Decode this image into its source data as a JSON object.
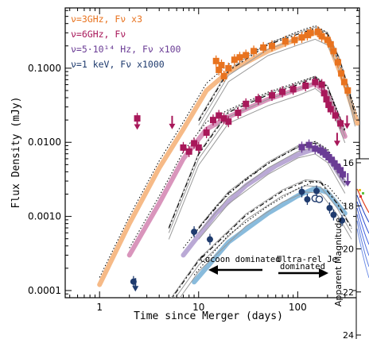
{
  "chart_data": {
    "type": "scatter",
    "xlabel": "Time since Merger (days)",
    "ylabel": "Flux Density (mJy)",
    "x_scale": "log",
    "y_scale": "log",
    "xlim": [
      0.45,
      420
    ],
    "ylim": [
      8e-05,
      0.65
    ],
    "x_ticks": [
      {
        "value": 1,
        "label": "1"
      },
      {
        "value": 10,
        "label": "10"
      },
      {
        "value": 100,
        "label": "100"
      }
    ],
    "y_ticks": [
      {
        "value": 0.0001,
        "label": "0.0001"
      },
      {
        "value": 0.001,
        "label": "0.0010"
      },
      {
        "value": 0.01,
        "label": "0.0100"
      },
      {
        "value": 0.1,
        "label": "0.1000"
      }
    ],
    "legend_position": "top-left",
    "series": [
      {
        "name": "ν=3GHz, Fν x3",
        "color": "#e8731f",
        "band_color": "#f5b27a",
        "points": [
          [
            15,
            0.125
          ],
          [
            16,
            0.095
          ],
          [
            17,
            0.11
          ],
          [
            18,
            0.078
          ],
          [
            20,
            0.1
          ],
          [
            23,
            0.13
          ],
          [
            26,
            0.14
          ],
          [
            30,
            0.15
          ],
          [
            36,
            0.17
          ],
          [
            45,
            0.19
          ],
          [
            55,
            0.2
          ],
          [
            75,
            0.23
          ],
          [
            93,
            0.24
          ],
          [
            110,
            0.26
          ],
          [
            125,
            0.28
          ],
          [
            135,
            0.3
          ],
          [
            160,
            0.31
          ],
          [
            175,
            0.27
          ],
          [
            200,
            0.24
          ],
          [
            215,
            0.21
          ],
          [
            230,
            0.17
          ],
          [
            255,
            0.12
          ],
          [
            275,
            0.085
          ],
          [
            295,
            0.065
          ],
          [
            320,
            0.05
          ]
        ],
        "model": [
          [
            10,
            0.017
          ],
          [
            20,
            0.08
          ],
          [
            50,
            0.18
          ],
          [
            100,
            0.25
          ],
          [
            150,
            0.3
          ],
          [
            200,
            0.25
          ],
          [
            260,
            0.12
          ],
          [
            320,
            0.05
          ],
          [
            380,
            0.02
          ]
        ],
        "band": [
          [
            1,
            0.00012
          ],
          [
            2,
            0.0008
          ],
          [
            4,
            0.0045
          ],
          [
            7,
            0.015
          ],
          [
            12,
            0.05
          ],
          [
            20,
            0.09
          ],
          [
            50,
            0.17
          ],
          [
            100,
            0.25
          ],
          [
            150,
            0.3
          ],
          [
            200,
            0.24
          ],
          [
            300,
            0.06
          ],
          [
            400,
            0.018
          ]
        ]
      },
      {
        "name": "ν=6GHz, Fν",
        "color": "#a8185a",
        "band_color": "#d58ab5",
        "points": [
          [
            2.4,
            0.021
          ],
          [
            7,
            0.0085
          ],
          [
            8,
            0.0075
          ],
          [
            9,
            0.0097
          ],
          [
            10,
            0.0085
          ],
          [
            12,
            0.0135
          ],
          [
            14,
            0.02
          ],
          [
            16,
            0.023
          ],
          [
            18,
            0.021
          ],
          [
            20,
            0.019
          ],
          [
            25,
            0.025
          ],
          [
            30,
            0.033
          ],
          [
            40,
            0.038
          ],
          [
            55,
            0.043
          ],
          [
            70,
            0.048
          ],
          [
            90,
            0.052
          ],
          [
            120,
            0.058
          ],
          [
            150,
            0.065
          ],
          [
            175,
            0.06
          ],
          [
            185,
            0.046
          ],
          [
            195,
            0.038
          ],
          [
            205,
            0.032
          ],
          [
            215,
            0.028
          ],
          [
            240,
            0.023
          ],
          [
            270,
            0.018
          ]
        ],
        "model": [
          [
            5,
            0.0006
          ],
          [
            10,
            0.006
          ],
          [
            20,
            0.022
          ],
          [
            50,
            0.038
          ],
          [
            100,
            0.052
          ],
          [
            150,
            0.065
          ],
          [
            200,
            0.048
          ],
          [
            300,
            0.012
          ]
        ],
        "band": [
          [
            2,
            0.0003
          ],
          [
            4,
            0.0015
          ],
          [
            7,
            0.006
          ],
          [
            12,
            0.015
          ],
          [
            20,
            0.022
          ],
          [
            50,
            0.038
          ],
          [
            100,
            0.052
          ],
          [
            150,
            0.062
          ],
          [
            200,
            0.045
          ],
          [
            300,
            0.012
          ]
        ]
      },
      {
        "name": "ν=5·10¹⁴ Hz, Fν x100",
        "color": "#6a3c95",
        "band_color": "#b3a0d0",
        "points": [
          [
            110,
            0.0086
          ],
          [
            130,
            0.0092
          ],
          [
            150,
            0.0082
          ],
          [
            170,
            0.0078
          ],
          [
            180,
            0.0074
          ],
          [
            195,
            0.0068
          ],
          [
            205,
            0.0063
          ],
          [
            220,
            0.0058
          ],
          [
            235,
            0.0052
          ],
          [
            250,
            0.0047
          ],
          [
            270,
            0.0042
          ],
          [
            285,
            0.0037
          ]
        ],
        "model": [
          [
            10,
            0.0006
          ],
          [
            20,
            0.0018
          ],
          [
            50,
            0.0045
          ],
          [
            100,
            0.0075
          ],
          [
            150,
            0.0085
          ],
          [
            200,
            0.0065
          ],
          [
            300,
            0.0025
          ]
        ],
        "band": [
          [
            7,
            0.0003
          ],
          [
            15,
            0.0011
          ],
          [
            30,
            0.0026
          ],
          [
            60,
            0.0048
          ],
          [
            100,
            0.0068
          ],
          [
            150,
            0.0082
          ],
          [
            200,
            0.0065
          ],
          [
            300,
            0.0028
          ]
        ]
      },
      {
        "name": "ν=1 keV, Fν x1000",
        "color": "#1f3b6e",
        "band_color": "#7cb4d8",
        "points": [
          [
            2.2,
            0.000132
          ],
          [
            9,
            0.00062
          ],
          [
            13,
            0.00049
          ],
          [
            110,
            0.00215
          ],
          [
            125,
            0.0017
          ],
          [
            155,
            0.0022
          ],
          [
            210,
            0.0013
          ],
          [
            230,
            0.00105
          ],
          [
            280,
            0.00088
          ]
        ],
        "open_points": [
          [
            150,
            0.00175
          ],
          [
            165,
            0.0017
          ]
        ],
        "model": [
          [
            5,
            6e-05
          ],
          [
            10,
            0.00022
          ],
          [
            30,
            0.0009
          ],
          [
            70,
            0.0019
          ],
          [
            120,
            0.0026
          ],
          [
            170,
            0.0025
          ],
          [
            250,
            0.0013
          ],
          [
            350,
            0.0006
          ]
        ],
        "band": [
          [
            9,
            0.00013
          ],
          [
            20,
            0.00045
          ],
          [
            50,
            0.0011
          ],
          [
            100,
            0.0019
          ],
          [
            150,
            0.0024
          ],
          [
            200,
            0.0021
          ],
          [
            300,
            0.0011
          ]
        ]
      }
    ],
    "annotations": [
      {
        "text": "Cocoon dominated",
        "arrow": "left"
      },
      {
        "text": "Ultra-rel Je",
        "text2": "dominated",
        "arrow": "right"
      }
    ],
    "inset": {
      "ylabel": "Apparent Magnitude",
      "ticks": [
        {
          "value": 16,
          "label": "16"
        },
        {
          "value": 18,
          "label": "18"
        },
        {
          "value": 20,
          "label": "20"
        },
        {
          "value": 22,
          "label": "22"
        },
        {
          "value": 24,
          "label": "24"
        }
      ],
      "mag_range": [
        16,
        24
      ]
    }
  }
}
